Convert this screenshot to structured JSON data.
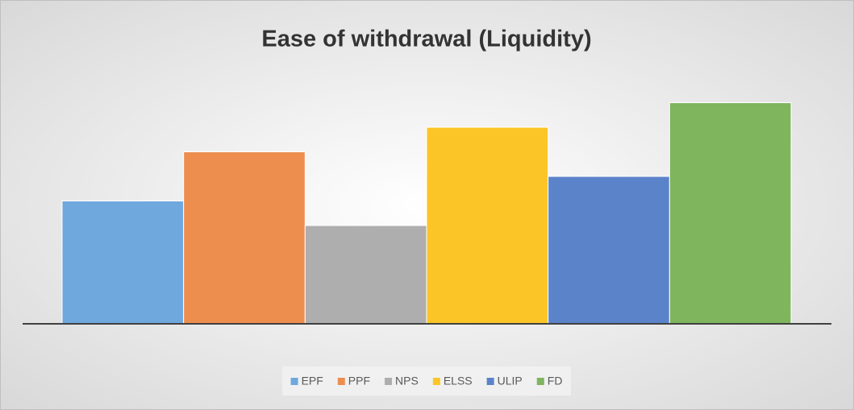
{
  "chart_data": {
    "type": "bar",
    "title": "Ease of withdrawal (Liquidity)",
    "series": [
      {
        "name": "EPF",
        "color": "#6fa8dc",
        "values": [
          5
        ]
      },
      {
        "name": "PPF",
        "color": "#ed8e4e",
        "values": [
          7
        ]
      },
      {
        "name": "NPS",
        "color": "#aeaeae",
        "values": [
          4
        ]
      },
      {
        "name": "ELSS",
        "color": "#fbc527",
        "values": [
          8
        ]
      },
      {
        "name": "ULIP",
        "color": "#5b83c9",
        "values": [
          6
        ]
      },
      {
        "name": "FD",
        "color": "#7fb55d",
        "values": [
          9
        ]
      }
    ],
    "ylim": [
      0,
      10
    ],
    "legend": "bottom",
    "grid": false
  }
}
